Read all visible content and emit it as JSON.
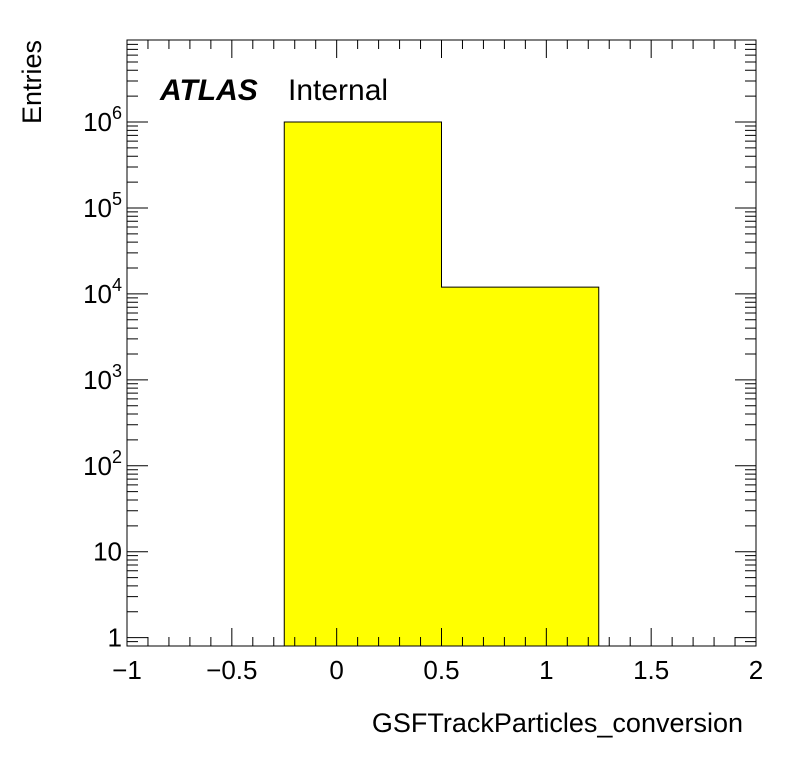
{
  "chart_data": {
    "type": "bar",
    "xlabel": "GSFTrackParticles_conversion",
    "ylabel": "Entries",
    "annotation": {
      "experiment": "ATLAS",
      "status": "Internal"
    },
    "xlim": [
      -1,
      2
    ],
    "ylim": [
      0.8,
      9000000
    ],
    "yscale": "log",
    "x_tick_labels": [
      "−1",
      "−0.5",
      "0",
      "0.5",
      "1",
      "1.5",
      "2"
    ],
    "x_tick_values": [
      -1,
      -0.5,
      0,
      0.5,
      1,
      1.5,
      2
    ],
    "y_tick_labels": [
      {
        "value": 1,
        "base": "1",
        "exp": ""
      },
      {
        "value": 10,
        "base": "10",
        "exp": ""
      },
      {
        "value": 100,
        "base": "10",
        "exp": "2"
      },
      {
        "value": 1000,
        "base": "10",
        "exp": "3"
      },
      {
        "value": 10000,
        "base": "10",
        "exp": "4"
      },
      {
        "value": 100000,
        "base": "10",
        "exp": "5"
      },
      {
        "value": 1000000,
        "base": "10",
        "exp": "6"
      }
    ],
    "bins": [
      {
        "x_low": -0.25,
        "x_high": 0.5,
        "value": 1000000
      },
      {
        "x_low": 0.5,
        "x_high": 1.25,
        "value": 12000
      }
    ],
    "fill_color": "#ffff00",
    "line_color": "#000000",
    "grid": false
  }
}
